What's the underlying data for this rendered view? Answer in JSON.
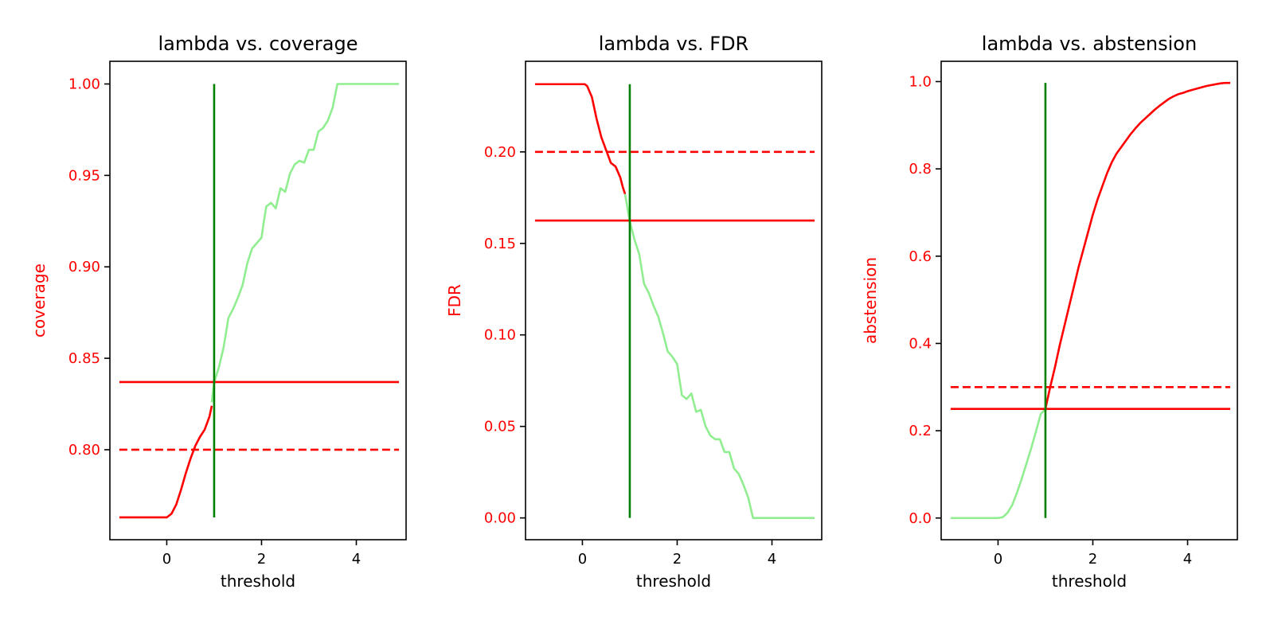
{
  "colors": {
    "axis": "#000000",
    "red": "#ff0000",
    "light_green": "#90ee90",
    "dark_green": "#008000",
    "y_tick_text": "#ff0000",
    "x_tick_text": "#000000"
  },
  "chart_data": [
    {
      "type": "line",
      "title": "lambda vs. coverage",
      "xlabel": "threshold",
      "ylabel": "coverage",
      "xlim": [
        -1.2,
        5.05
      ],
      "ylim": [
        0.7508,
        1.0124
      ],
      "x_ticks": [
        0,
        2,
        4
      ],
      "x_tick_labels": [
        "0",
        "2",
        "4"
      ],
      "y_ticks": [
        0.8,
        0.85,
        0.9,
        0.95,
        1.0
      ],
      "y_tick_labels": [
        "0.80",
        "0.85",
        "0.90",
        "0.95",
        "1.00"
      ],
      "grid": false,
      "series": [
        {
          "color": "#ff0000",
          "style": "solid",
          "x": [
            -1.0,
            0.0,
            0.1,
            0.2,
            0.3,
            0.4,
            0.5,
            0.6,
            0.7,
            0.8,
            0.9,
            0.95
          ],
          "y": [
            0.763,
            0.763,
            0.765,
            0.77,
            0.778,
            0.787,
            0.795,
            0.802,
            0.807,
            0.811,
            0.818,
            0.824
          ]
        },
        {
          "color": "#90ee90",
          "style": "solid",
          "x": [
            0.95,
            1.0,
            1.1,
            1.2,
            1.3,
            1.4,
            1.5,
            1.6,
            1.7,
            1.8,
            1.9,
            2.0,
            2.05,
            2.1,
            2.2,
            2.3,
            2.4,
            2.5,
            2.6,
            2.7,
            2.8,
            2.9,
            3.0,
            3.1,
            3.2,
            3.3,
            3.4,
            3.5,
            3.6,
            4.9
          ],
          "y": [
            0.826,
            0.837,
            0.845,
            0.856,
            0.872,
            0.877,
            0.883,
            0.89,
            0.902,
            0.91,
            0.913,
            0.916,
            0.925,
            0.933,
            0.935,
            0.932,
            0.943,
            0.941,
            0.951,
            0.956,
            0.958,
            0.957,
            0.964,
            0.964,
            0.974,
            0.976,
            0.98,
            0.987,
            1.0,
            1.0
          ]
        },
        {
          "color": "#ff0000",
          "style": "solid",
          "x": [
            -1.0,
            4.9
          ],
          "y": [
            0.837,
            0.837
          ]
        },
        {
          "color": "#ff0000",
          "style": "dashed",
          "x": [
            -1.0,
            4.9
          ],
          "y": [
            0.8,
            0.8
          ]
        },
        {
          "color": "#008000",
          "style": "solid",
          "x": [
            1.0,
            1.0
          ],
          "y": [
            0.763,
            1.0
          ]
        }
      ]
    },
    {
      "type": "line",
      "title": "lambda vs. FDR",
      "xlabel": "threshold",
      "ylabel": "FDR",
      "xlim": [
        -1.2,
        5.05
      ],
      "ylim": [
        -0.0119,
        0.2495
      ],
      "x_ticks": [
        0,
        2,
        4
      ],
      "x_tick_labels": [
        "0",
        "2",
        "4"
      ],
      "y_ticks": [
        0.0,
        0.05,
        0.1,
        0.15,
        0.2
      ],
      "y_tick_labels": [
        "0.00",
        "0.05",
        "0.10",
        "0.15",
        "0.20"
      ],
      "grid": false,
      "series": [
        {
          "color": "#ff0000",
          "style": "solid",
          "x": [
            -1.0,
            0.0,
            0.05,
            0.1,
            0.2,
            0.3,
            0.4,
            0.5,
            0.6,
            0.7,
            0.8,
            0.85,
            0.9
          ],
          "y": [
            0.237,
            0.237,
            0.237,
            0.236,
            0.23,
            0.218,
            0.208,
            0.201,
            0.194,
            0.192,
            0.186,
            0.181,
            0.177
          ]
        },
        {
          "color": "#90ee90",
          "style": "solid",
          "x": [
            0.9,
            1.0,
            1.1,
            1.2,
            1.3,
            1.4,
            1.5,
            1.6,
            1.7,
            1.8,
            1.9,
            2.0,
            2.1,
            2.2,
            2.3,
            2.4,
            2.5,
            2.6,
            2.7,
            2.8,
            2.9,
            3.0,
            3.1,
            3.2,
            3.3,
            3.4,
            3.5,
            3.6,
            4.9
          ],
          "y": [
            0.177,
            0.162,
            0.152,
            0.144,
            0.128,
            0.123,
            0.116,
            0.11,
            0.101,
            0.091,
            0.088,
            0.084,
            0.067,
            0.065,
            0.068,
            0.058,
            0.059,
            0.05,
            0.045,
            0.043,
            0.043,
            0.036,
            0.036,
            0.027,
            0.024,
            0.018,
            0.011,
            0.0,
            0.0
          ]
        },
        {
          "color": "#ff0000",
          "style": "solid",
          "x": [
            -1.0,
            4.9
          ],
          "y": [
            0.1625,
            0.1625
          ]
        },
        {
          "color": "#ff0000",
          "style": "dashed",
          "x": [
            -1.0,
            4.9
          ],
          "y": [
            0.2,
            0.2
          ]
        },
        {
          "color": "#008000",
          "style": "solid",
          "x": [
            1.0,
            1.0
          ],
          "y": [
            0.0,
            0.237
          ]
        }
      ]
    },
    {
      "type": "line",
      "title": "lambda vs. abstension",
      "xlabel": "threshold",
      "ylabel": "abstension",
      "xlim": [
        -1.2,
        5.05
      ],
      "ylim": [
        -0.0497,
        1.0465
      ],
      "x_ticks": [
        0,
        2,
        4
      ],
      "x_tick_labels": [
        "0",
        "2",
        "4"
      ],
      "y_ticks": [
        0.0,
        0.2,
        0.4,
        0.6,
        0.8,
        1.0
      ],
      "y_tick_labels": [
        "0.0",
        "0.2",
        "0.4",
        "0.6",
        "0.8",
        "1.0"
      ],
      "grid": false,
      "series": [
        {
          "color": "#90ee90",
          "style": "solid",
          "x": [
            -1.0,
            0.0,
            0.1,
            0.2,
            0.3,
            0.4,
            0.5,
            0.6,
            0.7,
            0.8,
            0.9,
            1.0
          ],
          "y": [
            0.0,
            0.0,
            0.002,
            0.012,
            0.03,
            0.058,
            0.09,
            0.125,
            0.16,
            0.198,
            0.238,
            0.25
          ]
        },
        {
          "color": "#ff0000",
          "style": "solid",
          "x": [
            1.0,
            1.1,
            1.2,
            1.3,
            1.4,
            1.5,
            1.6,
            1.7,
            1.8,
            1.9,
            2.0,
            2.1,
            2.2,
            2.3,
            2.4,
            2.5,
            2.6,
            2.7,
            2.8,
            2.9,
            3.0,
            3.1,
            3.2,
            3.3,
            3.4,
            3.5,
            3.6,
            3.7,
            3.8,
            3.9,
            4.0,
            4.1,
            4.2,
            4.3,
            4.4,
            4.5,
            4.6,
            4.7,
            4.8,
            4.9
          ],
          "y": [
            0.25,
            0.3,
            0.345,
            0.395,
            0.44,
            0.485,
            0.53,
            0.575,
            0.615,
            0.655,
            0.695,
            0.73,
            0.76,
            0.79,
            0.815,
            0.835,
            0.85,
            0.865,
            0.88,
            0.893,
            0.905,
            0.915,
            0.925,
            0.935,
            0.944,
            0.952,
            0.96,
            0.966,
            0.971,
            0.974,
            0.978,
            0.981,
            0.984,
            0.987,
            0.99,
            0.992,
            0.994,
            0.996,
            0.997,
            0.997
          ]
        },
        {
          "color": "#ff0000",
          "style": "solid",
          "x": [
            -1.0,
            4.9
          ],
          "y": [
            0.25,
            0.25
          ]
        },
        {
          "color": "#ff0000",
          "style": "dashed",
          "x": [
            -1.0,
            4.9
          ],
          "y": [
            0.3,
            0.3
          ]
        },
        {
          "color": "#008000",
          "style": "solid",
          "x": [
            1.0,
            1.0
          ],
          "y": [
            0.0,
            0.997
          ]
        }
      ]
    }
  ]
}
